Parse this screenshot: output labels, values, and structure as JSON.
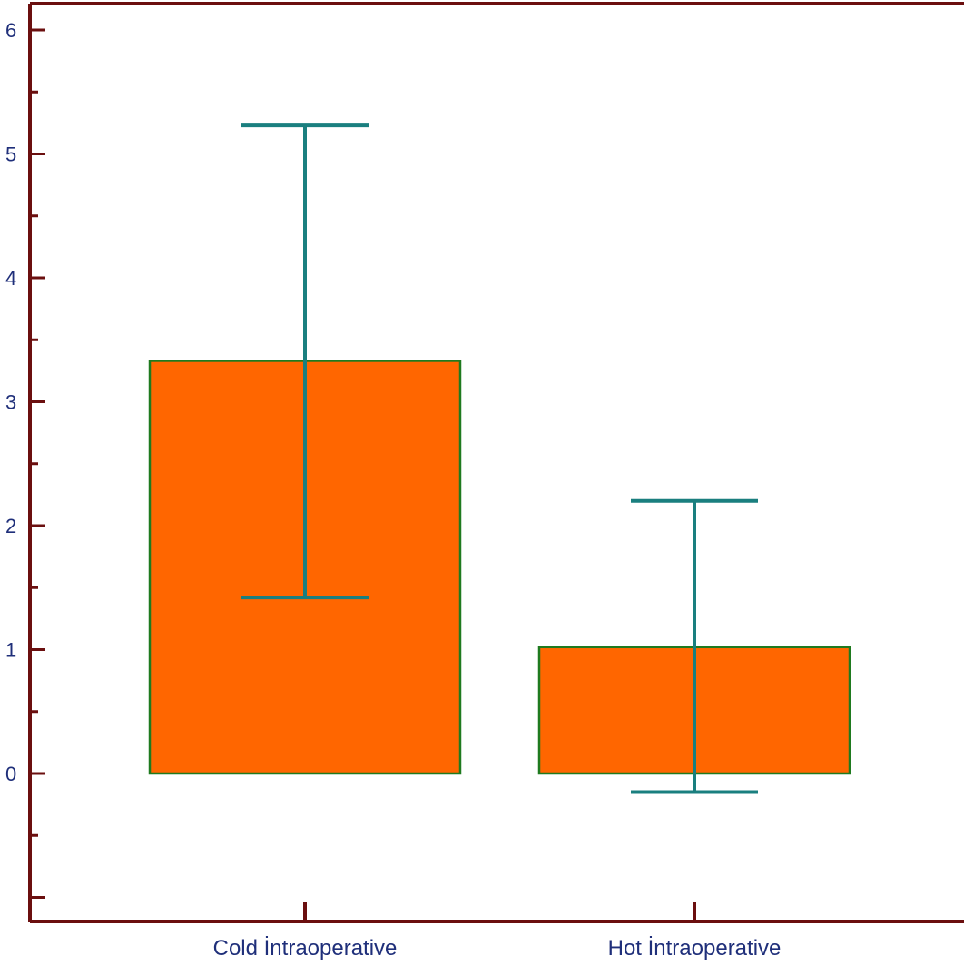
{
  "chart_data": {
    "type": "bar",
    "title": "",
    "xlabel": "",
    "ylabel": "",
    "categories": [
      "Cold İntraoperative",
      "Hot İntraoperative"
    ],
    "values": [
      3.33,
      1.02
    ],
    "error_bars": [
      {
        "low": 1.42,
        "high": 5.23
      },
      {
        "low": -0.15,
        "high": 2.2
      }
    ],
    "ylim": [
      -1,
      6
    ],
    "yticks": [
      0,
      1,
      2,
      3,
      4,
      5,
      6
    ],
    "ytick_labels": [
      "0",
      "1",
      "2",
      "3",
      "4",
      "5",
      "6"
    ],
    "grid": false,
    "legend": "none",
    "colors": {
      "bar_fill": "#ff6600",
      "bar_edge": "#1f7a1f",
      "error_bar": "#1a7f7f",
      "axis": "#6b0f0f",
      "text": "#1f2f7a"
    }
  }
}
